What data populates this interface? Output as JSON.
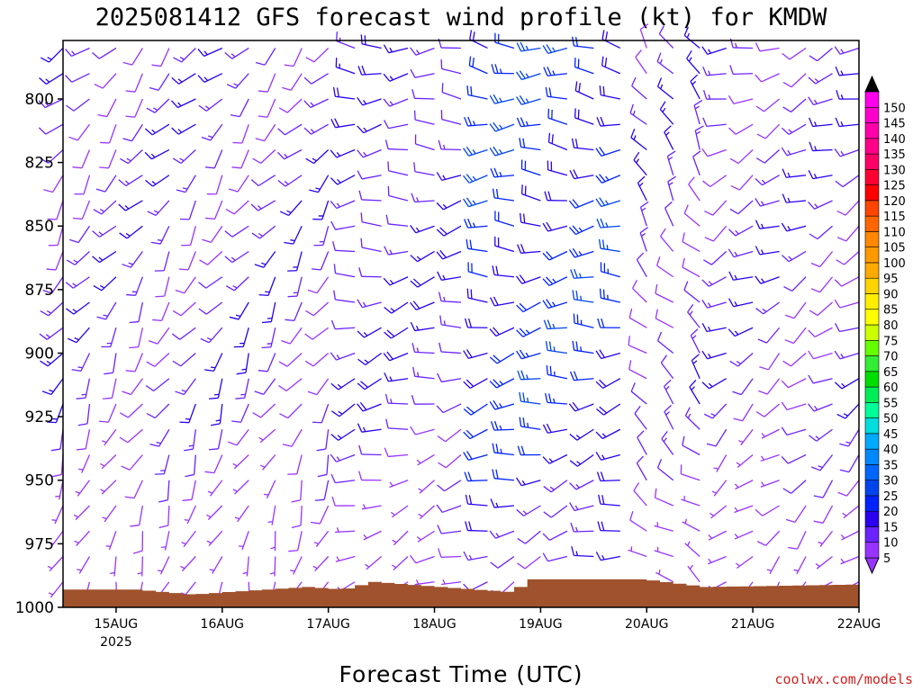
{
  "header": {
    "title": "2025081412 GFS forecast wind profile (kt) for KMDW"
  },
  "footer": {
    "credit": "coolwx.com/models"
  },
  "colors": {
    "terrain": "#a0522d",
    "credit": "#d02020",
    "frame": "#000000",
    "background": "#ffffff"
  },
  "chart_data": {
    "type": "wind_barb_time_height",
    "xlabel": "Forecast Time (UTC)",
    "ylabel": "",
    "x_ticks": [
      {
        "label": "15AUG",
        "sublabel": "2025",
        "hour": 12
      },
      {
        "label": "16AUG",
        "sublabel": "",
        "hour": 36
      },
      {
        "label": "17AUG",
        "sublabel": "",
        "hour": 60
      },
      {
        "label": "18AUG",
        "sublabel": "",
        "hour": 84
      },
      {
        "label": "19AUG",
        "sublabel": "",
        "hour": 108
      },
      {
        "label": "20AUG",
        "sublabel": "",
        "hour": 132
      },
      {
        "label": "21AUG",
        "sublabel": "",
        "hour": 156
      },
      {
        "label": "22AUG",
        "sublabel": "",
        "hour": 180
      }
    ],
    "xlim_hours": [
      0,
      180
    ],
    "y_ticks": [
      "800",
      "825",
      "850",
      "875",
      "900",
      "925",
      "950",
      "975",
      "1000"
    ],
    "ylim_hpa": [
      777,
      1000
    ],
    "levels_hpa": [
      780,
      790,
      800,
      810,
      820,
      830,
      840,
      850,
      860,
      870,
      880,
      890,
      900,
      910,
      920,
      930,
      940,
      950,
      960,
      970,
      980,
      990
    ],
    "colorbar": {
      "labels": [
        "5",
        "10",
        "15",
        "20",
        "25",
        "30",
        "35",
        "40",
        "45",
        "50",
        "55",
        "60",
        "65",
        "70",
        "75",
        "80",
        "85",
        "90",
        "95",
        "100",
        "105",
        "110",
        "115",
        "120",
        "125",
        "130",
        "135",
        "140",
        "145",
        "150"
      ],
      "colors": [
        "#9933ff",
        "#6a22ff",
        "#2a00ee",
        "#0022ff",
        "#0044ee",
        "#0066ff",
        "#0088ff",
        "#00aaff",
        "#00dddd",
        "#00ff99",
        "#00ee55",
        "#00dd00",
        "#33ee33",
        "#66ff00",
        "#ccff00",
        "#ffff00",
        "#ffee00",
        "#ffd400",
        "#ffaa00",
        "#ff9900",
        "#ff8800",
        "#ff6600",
        "#ff4400",
        "#ff0000",
        "#ff0033",
        "#ff0066",
        "#ff0088",
        "#ff00aa",
        "#ff00cc",
        "#ff00ee"
      ],
      "under_color": "#9933ff",
      "over_color": "#000000"
    },
    "time_phases": [
      {
        "start_h": 0,
        "end_h": 66,
        "dir_deg": 225,
        "speed_kt": 12
      },
      {
        "start_h": 66,
        "end_h": 91,
        "dir_deg": 270,
        "speed_kt": 14
      },
      {
        "start_h": 91,
        "end_h": 132,
        "dir_deg": 275,
        "speed_kt": 22
      },
      {
        "start_h": 132,
        "end_h": 150,
        "dir_deg": 330,
        "speed_kt": 12
      },
      {
        "start_h": 150,
        "end_h": 180,
        "dir_deg": 250,
        "speed_kt": 12
      }
    ],
    "terrain_pressure_hpa": [
      [
        0,
        993
      ],
      [
        15,
        993
      ],
      [
        28,
        995
      ],
      [
        36,
        994
      ],
      [
        54,
        992
      ],
      [
        62,
        993
      ],
      [
        69,
        990
      ],
      [
        84,
        992
      ],
      [
        100,
        994
      ],
      [
        105,
        989
      ],
      [
        130,
        989
      ],
      [
        144,
        992
      ],
      [
        180,
        991
      ]
    ]
  }
}
